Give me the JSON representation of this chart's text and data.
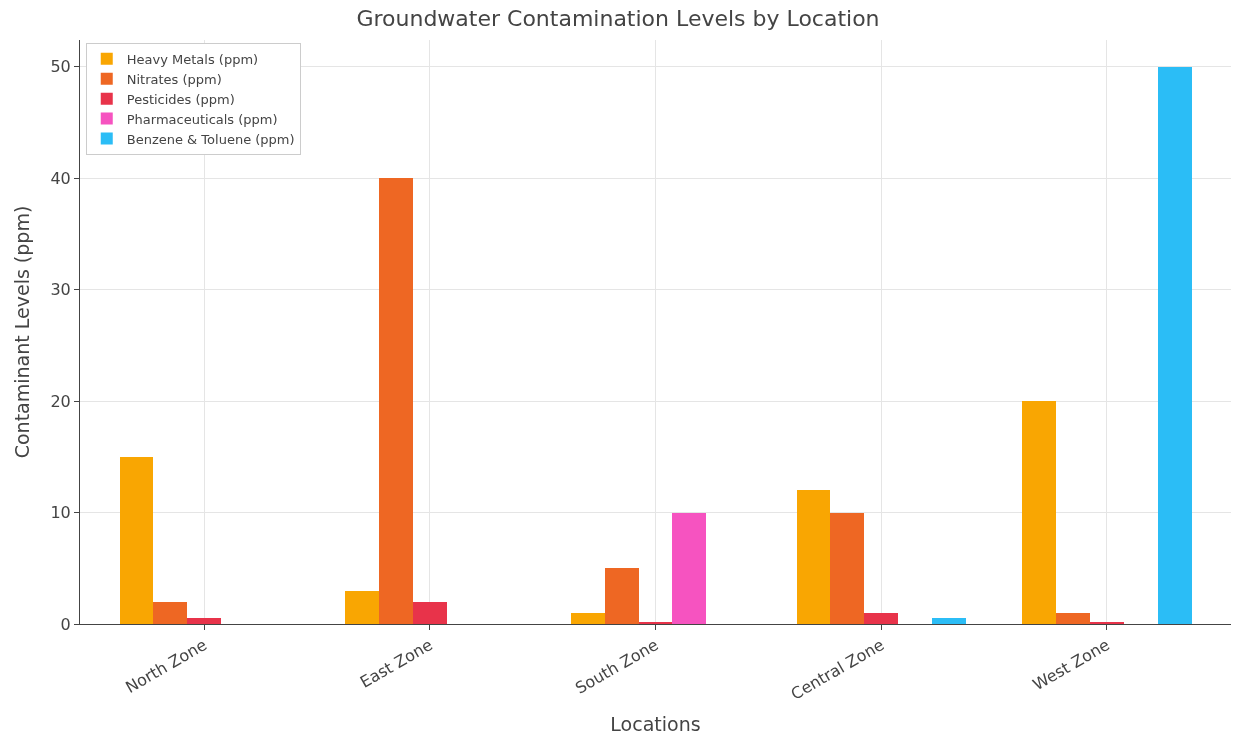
{
  "chart_data": {
    "type": "bar",
    "title": "Groundwater Contamination Levels by Location",
    "xlabel": "Locations",
    "ylabel": "Contaminant Levels (ppm)",
    "categories": [
      "North Zone",
      "East Zone",
      "South Zone",
      "Central Zone",
      "West Zone"
    ],
    "series": [
      {
        "name": "Heavy Metals (ppm)",
        "color": "#f9a602",
        "values": [
          15,
          3,
          1,
          12,
          20
        ]
      },
      {
        "name": "Nitrates (ppm)",
        "color": "#ee6723",
        "values": [
          2,
          40,
          5,
          10,
          1
        ]
      },
      {
        "name": "Pesticides (ppm)",
        "color": "#e8334a",
        "values": [
          0.5,
          2,
          0.1,
          1,
          0.2
        ]
      },
      {
        "name": "Pharmaceuticals (ppm)",
        "color": "#f653c0",
        "values": [
          0,
          0,
          10,
          0,
          0
        ]
      },
      {
        "name": "Benzene & Toluene (ppm)",
        "color": "#2bbdf6",
        "values": [
          0,
          0,
          0,
          0.5,
          50
        ]
      }
    ],
    "ylim": [
      0,
      52.4
    ],
    "yticks": [
      0,
      10,
      20,
      30,
      40,
      50
    ],
    "grid": true,
    "legend": "top left"
  }
}
